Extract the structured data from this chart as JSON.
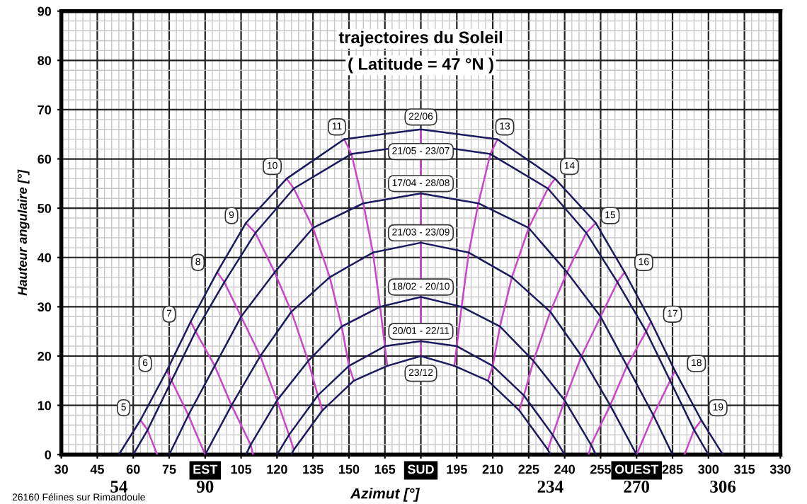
{
  "chart_data": {
    "type": "line",
    "title": "trajectoires du Soleil",
    "subtitle": "( Latitude = 47 °N )",
    "xlabel": "Azimut [°]",
    "ylabel": "Hauteur angulaire [°]",
    "xlim": [
      30,
      330
    ],
    "ylim": [
      0,
      90
    ],
    "xticks": [
      30,
      45,
      60,
      75,
      {
        "value": 90,
        "label": "EST"
      },
      105,
      120,
      135,
      150,
      165,
      {
        "value": 180,
        "label": "SUD"
      },
      195,
      210,
      225,
      240,
      255,
      {
        "value": 270,
        "label": "OUEST"
      },
      285,
      300,
      315,
      330
    ],
    "yticks": [
      0,
      10,
      20,
      30,
      40,
      50,
      60,
      70,
      80,
      90
    ],
    "grid": true,
    "marker": "none",
    "line_style": "solid",
    "series": [
      {
        "color": "#cc44cc",
        "x": [
          63,
          66,
          70
        ],
        "values": [
          7,
          5,
          0
        ]
      },
      {
        "color": "#cc44cc",
        "x": [
          74,
          76,
          83,
          90
        ],
        "values": [
          17,
          15,
          8,
          0
        ]
      },
      {
        "color": "#cc44cc",
        "x": [
          84,
          86,
          94,
          101,
          109,
          110
        ],
        "values": [
          27,
          25,
          18,
          10,
          2,
          0
        ]
      },
      {
        "color": "#cc44cc",
        "x": [
          95,
          98,
          105,
          113,
          120,
          125,
          127
        ],
        "values": [
          37,
          35,
          28,
          20,
          11,
          4,
          1
        ]
      },
      {
        "color": "#cc44cc",
        "x": [
          107,
          111,
          119,
          126,
          133,
          137,
          139
        ],
        "values": [
          47,
          45,
          37,
          29,
          19,
          12,
          9
        ]
      },
      {
        "color": "#cc44cc",
        "x": [
          124,
          127,
          135,
          142,
          147,
          150,
          152
        ],
        "values": [
          56,
          54,
          46,
          36,
          26,
          18,
          15
        ]
      },
      {
        "color": "#cc44cc",
        "x": [
          148,
          151,
          156,
          160,
          163,
          165,
          166
        ],
        "values": [
          64,
          61,
          51,
          41,
          30,
          22,
          18
        ]
      },
      {
        "color": "#cc44cc",
        "x": [
          180,
          180,
          180,
          180,
          180,
          180,
          180
        ],
        "values": [
          66,
          63,
          53,
          43,
          32,
          23,
          20
        ]
      },
      {
        "color": "#cc44cc",
        "x": [
          212,
          209,
          204,
          200,
          197,
          195,
          194
        ],
        "values": [
          64,
          61,
          51,
          41,
          30,
          22,
          18
        ]
      },
      {
        "color": "#cc44cc",
        "x": [
          236,
          233,
          225,
          218,
          213,
          210,
          208
        ],
        "values": [
          56,
          54,
          46,
          36,
          26,
          18,
          15
        ]
      },
      {
        "color": "#cc44cc",
        "x": [
          253,
          249,
          241,
          234,
          227,
          223,
          221
        ],
        "values": [
          47,
          45,
          37,
          29,
          19,
          12,
          9
        ]
      },
      {
        "color": "#cc44cc",
        "x": [
          265,
          262,
          255,
          247,
          240,
          235,
          233
        ],
        "values": [
          37,
          35,
          28,
          20,
          11,
          4,
          1
        ]
      },
      {
        "color": "#cc44cc",
        "x": [
          276,
          274,
          266,
          259,
          251,
          250
        ],
        "values": [
          27,
          25,
          18,
          10,
          2,
          0
        ]
      },
      {
        "color": "#cc44cc",
        "x": [
          286,
          284,
          277,
          270
        ],
        "values": [
          17,
          15,
          8,
          0
        ]
      },
      {
        "color": "#cc44cc",
        "x": [
          297,
          294,
          290
        ],
        "values": [
          7,
          5,
          0
        ]
      },
      {
        "color": "#1a1a5e",
        "x": [
          54,
          63,
          74,
          84,
          95,
          107,
          124,
          148,
          180,
          212,
          236,
          253,
          265,
          276,
          286,
          297,
          306
        ],
        "values": [
          0,
          7,
          17,
          27,
          37,
          47,
          56,
          64,
          66,
          64,
          56,
          47,
          37,
          27,
          17,
          7,
          0
        ]
      },
      {
        "color": "#1a1a5e",
        "x": [
          60,
          66,
          76,
          86,
          98,
          111,
          127,
          151,
          180,
          209,
          233,
          249,
          262,
          274,
          284,
          294,
          300
        ],
        "values": [
          0,
          5,
          15,
          25,
          35,
          45,
          54,
          61,
          63,
          61,
          54,
          45,
          35,
          25,
          15,
          5,
          0
        ]
      },
      {
        "color": "#1a1a5e",
        "x": [
          75,
          83,
          94,
          105,
          119,
          135,
          156,
          180,
          204,
          225,
          241,
          255,
          266,
          277,
          285
        ],
        "values": [
          0,
          8,
          18,
          28,
          37,
          46,
          51,
          53,
          51,
          46,
          37,
          28,
          18,
          8,
          0
        ]
      },
      {
        "color": "#1a1a5e",
        "x": [
          90,
          101,
          113,
          126,
          142,
          160,
          180,
          200,
          218,
          234,
          247,
          259,
          270
        ],
        "values": [
          0,
          10,
          20,
          29,
          36,
          41,
          43,
          41,
          36,
          29,
          20,
          10,
          0
        ]
      },
      {
        "color": "#1a1a5e",
        "x": [
          107,
          109,
          120,
          133,
          147,
          163,
          180,
          197,
          213,
          227,
          240,
          251,
          253
        ],
        "values": [
          0,
          2,
          11,
          19,
          26,
          30,
          32,
          30,
          26,
          19,
          11,
          2,
          0
        ]
      },
      {
        "color": "#1a1a5e",
        "x": [
          120,
          125,
          137,
          150,
          165,
          180,
          195,
          210,
          223,
          235,
          240
        ],
        "values": [
          0,
          4,
          12,
          18,
          22,
          23,
          22,
          18,
          12,
          4,
          0
        ]
      },
      {
        "color": "#1a1a5e",
        "x": [
          126,
          127,
          139,
          152,
          166,
          180,
          194,
          208,
          221,
          233,
          234
        ],
        "values": [
          0,
          1,
          9,
          15,
          18,
          20,
          18,
          15,
          9,
          1,
          0
        ]
      }
    ],
    "annotations": [
      {
        "text": "5",
        "x": 56,
        "y": 9.5
      },
      {
        "text": "6",
        "x": 65,
        "y": 18.5
      },
      {
        "text": "7",
        "x": 75,
        "y": 28.5
      },
      {
        "text": "8",
        "x": 87,
        "y": 39
      },
      {
        "text": "9",
        "x": 101,
        "y": 48.5
      },
      {
        "text": "10",
        "x": 118,
        "y": 58.5
      },
      {
        "text": "11",
        "x": 145,
        "y": 66.5
      },
      {
        "text": "13",
        "x": 215,
        "y": 66.5
      },
      {
        "text": "14",
        "x": 242,
        "y": 58.5
      },
      {
        "text": "15",
        "x": 259,
        "y": 48.5
      },
      {
        "text": "16",
        "x": 273,
        "y": 39
      },
      {
        "text": "17",
        "x": 285,
        "y": 28.5
      },
      {
        "text": "18",
        "x": 295,
        "y": 18.5
      },
      {
        "text": "19",
        "x": 304,
        "y": 9.5
      },
      {
        "text": "22/06",
        "x": 180,
        "y": 68.5
      },
      {
        "text": "21/05 - 23/07",
        "x": 180,
        "y": 61.5
      },
      {
        "text": "17/04 - 28/08",
        "x": 180,
        "y": 55
      },
      {
        "text": "21/03 - 23/09",
        "x": 180,
        "y": 45
      },
      {
        "text": "18/02 - 20/10",
        "x": 180,
        "y": 34
      },
      {
        "text": "20/01 - 22/11",
        "x": 180,
        "y": 25
      },
      {
        "text": "23/12",
        "x": 180,
        "y": 16.5
      },
      {
        "text": "54",
        "x": 54,
        "y": 0
      },
      {
        "text": "90",
        "x": 90,
        "y": 0
      },
      {
        "text": "234",
        "x": 234,
        "y": 0
      },
      {
        "text": "270",
        "x": 270,
        "y": 0
      },
      {
        "text": "306",
        "x": 306,
        "y": 0
      },
      "26160 Félines sur Rimandoule"
    ]
  }
}
